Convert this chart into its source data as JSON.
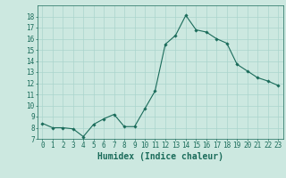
{
  "x": [
    0,
    1,
    2,
    3,
    4,
    5,
    6,
    7,
    8,
    9,
    10,
    11,
    12,
    13,
    14,
    15,
    16,
    17,
    18,
    19,
    20,
    21,
    22,
    23
  ],
  "y": [
    8.4,
    8.0,
    8.0,
    7.9,
    7.2,
    8.3,
    8.8,
    9.2,
    8.1,
    8.1,
    9.7,
    11.3,
    15.5,
    16.3,
    18.1,
    16.8,
    16.6,
    16.0,
    15.6,
    13.7,
    13.1,
    12.5,
    12.2,
    11.8
  ],
  "xlabel": "Humidex (Indice chaleur)",
  "xlim": [
    -0.5,
    23.5
  ],
  "ylim": [
    7,
    19
  ],
  "yticks": [
    7,
    8,
    9,
    10,
    11,
    12,
    13,
    14,
    15,
    16,
    17,
    18
  ],
  "xticks": [
    0,
    1,
    2,
    3,
    4,
    5,
    6,
    7,
    8,
    9,
    10,
    11,
    12,
    13,
    14,
    15,
    16,
    17,
    18,
    19,
    20,
    21,
    22,
    23
  ],
  "line_color": "#1a6b5a",
  "marker": "D",
  "marker_size": 1.8,
  "bg_color": "#cce8e0",
  "grid_color": "#aad4cc",
  "xlabel_fontsize": 7,
  "tick_fontsize": 5.5,
  "linewidth": 0.8
}
